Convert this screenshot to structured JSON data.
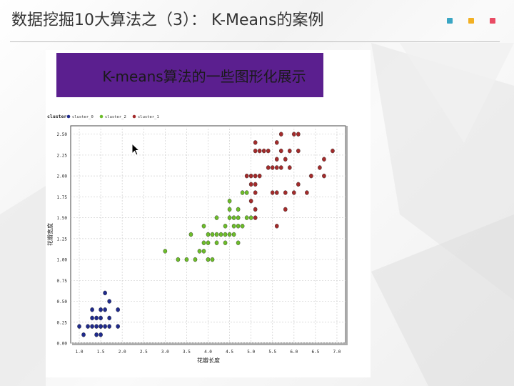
{
  "header": {
    "title": "数据挖掘10大算法之（3）： K-Means的案例",
    "accent_colors": [
      "#3aa6c4",
      "#f2b023",
      "#e94b64"
    ]
  },
  "slide": {
    "banner_text": "K-means算法的一些图形化展示"
  },
  "chart_data": {
    "type": "scatter",
    "title": "",
    "legend_title": "cluster",
    "legend_position": "top-left",
    "xlabel": "花瓣长度",
    "ylabel": "花瓣宽度",
    "xlim": [
      0.8,
      7.2
    ],
    "ylim": [
      0.0,
      2.6
    ],
    "x_ticks": [
      "1.0",
      "1.5",
      "2.0",
      "2.5",
      "3.0",
      "3.5",
      "4.0",
      "4.5",
      "5.0",
      "5.5",
      "6.0",
      "6.5",
      "7.0"
    ],
    "y_ticks": [
      "0.00",
      "0.25",
      "0.50",
      "0.75",
      "1.00",
      "1.25",
      "1.50",
      "1.75",
      "2.00",
      "2.25",
      "2.50"
    ],
    "grid": true,
    "series": [
      {
        "name": "cluster_0",
        "color": "#1f2a8c",
        "points": [
          [
            1.0,
            0.2
          ],
          [
            1.1,
            0.1
          ],
          [
            1.2,
            0.2
          ],
          [
            1.3,
            0.2
          ],
          [
            1.3,
            0.3
          ],
          [
            1.3,
            0.4
          ],
          [
            1.4,
            0.1
          ],
          [
            1.4,
            0.2
          ],
          [
            1.4,
            0.3
          ],
          [
            1.5,
            0.1
          ],
          [
            1.5,
            0.2
          ],
          [
            1.5,
            0.3
          ],
          [
            1.5,
            0.4
          ],
          [
            1.6,
            0.2
          ],
          [
            1.6,
            0.4
          ],
          [
            1.6,
            0.6
          ],
          [
            1.7,
            0.3
          ],
          [
            1.7,
            0.5
          ],
          [
            1.7,
            0.2
          ],
          [
            1.9,
            0.2
          ],
          [
            1.9,
            0.4
          ],
          [
            1.5,
            0.2
          ]
        ]
      },
      {
        "name": "cluster_2",
        "color": "#6dbd2a",
        "points": [
          [
            3.0,
            1.1
          ],
          [
            3.3,
            1.0
          ],
          [
            3.5,
            1.0
          ],
          [
            3.6,
            1.3
          ],
          [
            3.7,
            1.0
          ],
          [
            3.8,
            1.1
          ],
          [
            3.9,
            1.1
          ],
          [
            3.9,
            1.2
          ],
          [
            3.9,
            1.4
          ],
          [
            4.0,
            1.0
          ],
          [
            4.0,
            1.2
          ],
          [
            4.0,
            1.3
          ],
          [
            4.1,
            1.0
          ],
          [
            4.1,
            1.3
          ],
          [
            4.2,
            1.2
          ],
          [
            4.2,
            1.3
          ],
          [
            4.2,
            1.5
          ],
          [
            4.3,
            1.3
          ],
          [
            4.4,
            1.2
          ],
          [
            4.4,
            1.3
          ],
          [
            4.4,
            1.4
          ],
          [
            4.5,
            1.3
          ],
          [
            4.5,
            1.5
          ],
          [
            4.5,
            1.6
          ],
          [
            4.5,
            1.7
          ],
          [
            4.6,
            1.3
          ],
          [
            4.6,
            1.4
          ],
          [
            4.6,
            1.5
          ],
          [
            4.7,
            1.2
          ],
          [
            4.7,
            1.4
          ],
          [
            4.7,
            1.5
          ],
          [
            4.7,
            1.6
          ],
          [
            4.8,
            1.4
          ],
          [
            4.8,
            1.8
          ],
          [
            4.9,
            1.5
          ],
          [
            4.9,
            1.8
          ],
          [
            5.0,
            1.5
          ]
        ]
      },
      {
        "name": "cluster_1",
        "color": "#a32b2b",
        "points": [
          [
            4.9,
            2.0
          ],
          [
            5.0,
            1.7
          ],
          [
            5.0,
            1.9
          ],
          [
            5.0,
            2.0
          ],
          [
            5.1,
            1.5
          ],
          [
            5.1,
            1.6
          ],
          [
            5.1,
            1.8
          ],
          [
            5.1,
            1.9
          ],
          [
            5.1,
            2.0
          ],
          [
            5.1,
            2.3
          ],
          [
            5.1,
            2.4
          ],
          [
            5.2,
            2.0
          ],
          [
            5.2,
            2.3
          ],
          [
            5.3,
            2.3
          ],
          [
            5.4,
            2.1
          ],
          [
            5.4,
            2.3
          ],
          [
            5.5,
            1.8
          ],
          [
            5.5,
            2.1
          ],
          [
            5.6,
            1.4
          ],
          [
            5.6,
            1.8
          ],
          [
            5.6,
            2.1
          ],
          [
            5.6,
            2.2
          ],
          [
            5.6,
            2.4
          ],
          [
            5.7,
            2.1
          ],
          [
            5.7,
            2.3
          ],
          [
            5.7,
            2.5
          ],
          [
            5.8,
            1.6
          ],
          [
            5.8,
            1.8
          ],
          [
            5.8,
            2.2
          ],
          [
            5.9,
            2.1
          ],
          [
            5.9,
            2.3
          ],
          [
            6.0,
            1.8
          ],
          [
            6.0,
            2.5
          ],
          [
            6.1,
            1.9
          ],
          [
            6.1,
            2.3
          ],
          [
            6.1,
            2.5
          ],
          [
            6.3,
            1.8
          ],
          [
            6.4,
            2.0
          ],
          [
            6.6,
            2.1
          ],
          [
            6.7,
            2.0
          ],
          [
            6.7,
            2.2
          ],
          [
            6.9,
            2.3
          ]
        ]
      }
    ]
  }
}
